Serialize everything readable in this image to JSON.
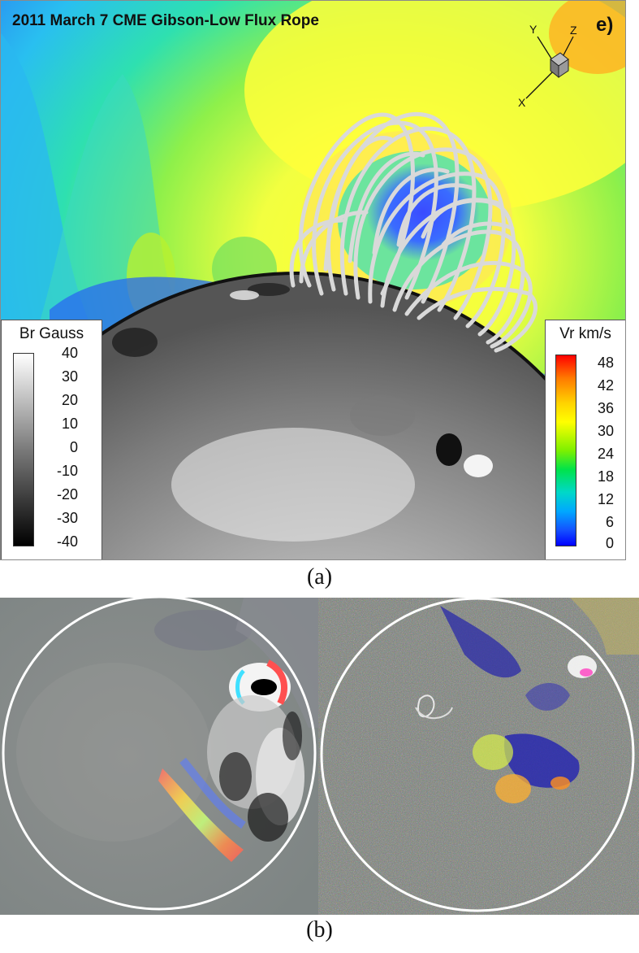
{
  "panel_a": {
    "title": "2011 March 7 CME Gibson-Low Flux Rope",
    "panel_letter": "e)",
    "axes": {
      "y": "Y",
      "z": "Z",
      "x": "X"
    },
    "br_legend": {
      "title": "Br Gauss",
      "ticks": [
        "40",
        "30",
        "20",
        "10",
        "0",
        "-10",
        "-20",
        "-30",
        "-40"
      ]
    },
    "vr_legend": {
      "title": "Vr km/s",
      "ticks": [
        "48",
        "42",
        "36",
        "30",
        "24",
        "18",
        "12",
        "6",
        "0"
      ]
    },
    "caption": "(a)"
  },
  "panel_b": {
    "caption": "(b)"
  },
  "colors": {
    "vr_high": "#ff0000",
    "vr_mid": "#ffff00",
    "vr_low": "#0000ff",
    "rope": "#d8d8d8"
  }
}
